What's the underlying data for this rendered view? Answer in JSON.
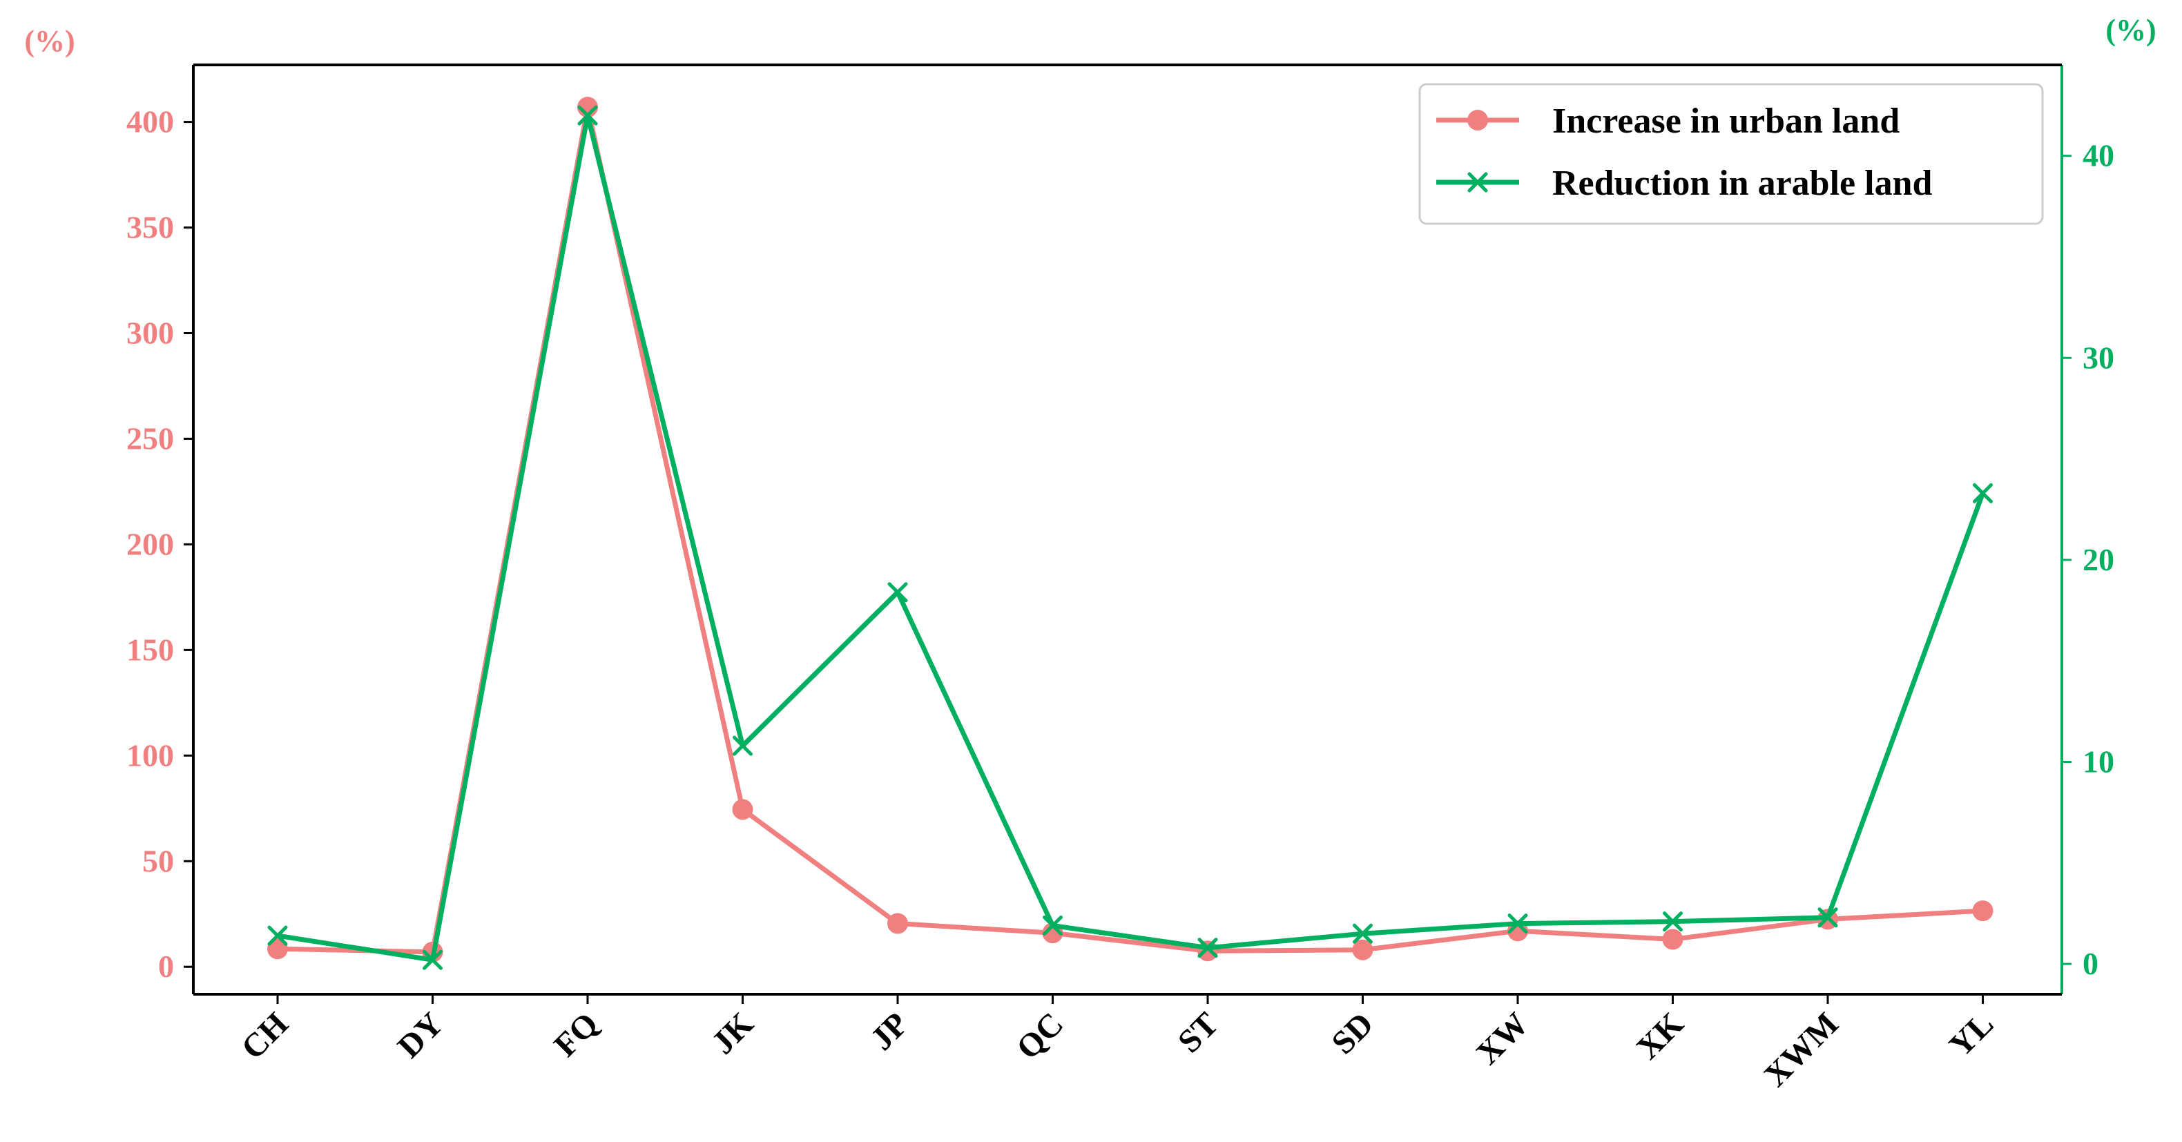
{
  "colors": {
    "urban": "#F08080",
    "arable": "#00B060",
    "axis": "#000000"
  },
  "axes": {
    "left_unit": "(%)",
    "right_unit": "(%)"
  },
  "legend": {
    "placement": "top-right",
    "urban_label": "Increase in urban land",
    "arable_label": "Reduction in arable land"
  },
  "chart_data": {
    "type": "line",
    "categories": [
      "CH",
      "DY",
      "FQ",
      "JK",
      "JP",
      "QC",
      "ST",
      "SD",
      "XW",
      "XK",
      "XWM",
      "YL"
    ],
    "series": [
      {
        "name": "Increase in urban land",
        "axis": "left",
        "marker": "circle",
        "values": [
          8.5,
          7.0,
          407,
          74.5,
          20.5,
          16.0,
          7.5,
          8.0,
          17.0,
          13.0,
          22.5,
          26.5
        ]
      },
      {
        "name": "Reduction in arable land",
        "axis": "right",
        "marker": "x",
        "values": [
          1.4,
          0.2,
          42.0,
          10.8,
          18.4,
          1.9,
          0.8,
          1.5,
          2.0,
          2.1,
          2.3,
          23.3
        ]
      }
    ],
    "y_left": {
      "ylim": [
        -13,
        427
      ],
      "ticks": [
        0,
        50,
        100,
        150,
        200,
        250,
        300,
        350,
        400
      ]
    },
    "y_right": {
      "ylim": [
        -1.5,
        44.5
      ],
      "ticks": [
        0,
        10,
        20,
        30,
        40
      ]
    },
    "grid": false
  }
}
